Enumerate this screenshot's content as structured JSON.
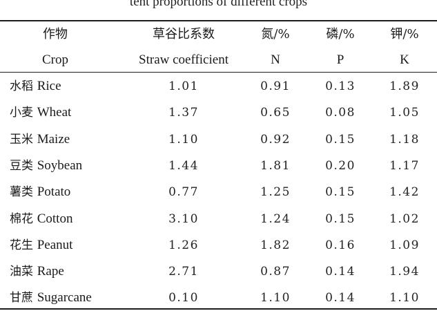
{
  "caption": "tent proportions of different crops",
  "headers": [
    {
      "cn": "作物",
      "en": "Crop"
    },
    {
      "cn": "草谷比系数",
      "en": "Straw coefficient"
    },
    {
      "cn": "氮/%",
      "en": "N"
    },
    {
      "cn": "磷/%",
      "en": "P"
    },
    {
      "cn": "钾/%",
      "en": "K"
    }
  ],
  "rows": [
    {
      "cn": "水稻",
      "en": "Rice",
      "coef": "1.01",
      "n": "0.91",
      "p": "0.13",
      "k": "1.89"
    },
    {
      "cn": "小麦",
      "en": "Wheat",
      "coef": "1.37",
      "n": "0.65",
      "p": "0.08",
      "k": "1.05"
    },
    {
      "cn": "玉米",
      "en": "Maize",
      "coef": "1.10",
      "n": "0.92",
      "p": "0.15",
      "k": "1.18"
    },
    {
      "cn": "豆类",
      "en": "Soybean",
      "coef": "1.44",
      "n": "1.81",
      "p": "0.20",
      "k": "1.17"
    },
    {
      "cn": "薯类",
      "en": "Potato",
      "coef": "0.77",
      "n": "1.25",
      "p": "0.15",
      "k": "1.42"
    },
    {
      "cn": "棉花",
      "en": "Cotton",
      "coef": "3.10",
      "n": "1.24",
      "p": "0.15",
      "k": "1.02"
    },
    {
      "cn": "花生",
      "en": "Peanut",
      "coef": "1.26",
      "n": "1.82",
      "p": "0.16",
      "k": "1.09"
    },
    {
      "cn": "油菜",
      "en": "Rape",
      "coef": "2.71",
      "n": "0.87",
      "p": "0.14",
      "k": "1.94"
    },
    {
      "cn": "甘蔗",
      "en": "Sugarcane",
      "coef": "0.10",
      "n": "1.10",
      "p": "0.14",
      "k": "1.10"
    }
  ]
}
